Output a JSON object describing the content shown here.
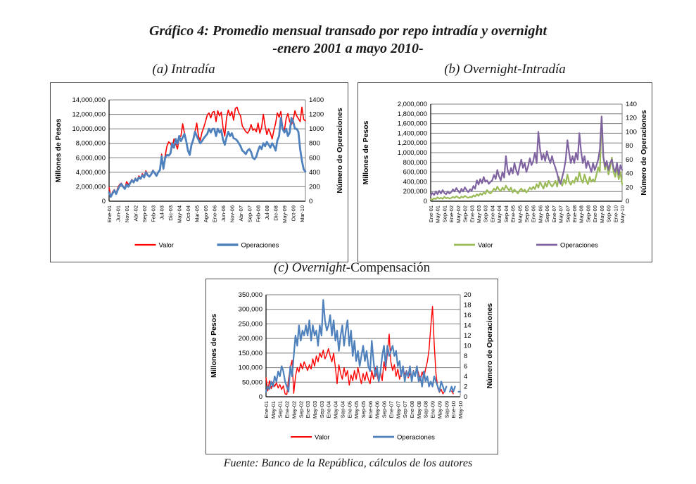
{
  "title": {
    "line1": "Gráfico 4: Promedio mensual transado por repo intradía y overnight",
    "line2": "-enero 2001 a mayo 2010-"
  },
  "footer": "Fuente: Banco de la República, cálculos de los autores",
  "chart_data": [
    {
      "id": "a",
      "type": "line",
      "caption_italic": "(a) Intradía",
      "caption_roman": "",
      "ylabel_left": "Millones de Pesos",
      "ylabel_right": "Número de Operaciones",
      "left_axis": {
        "min": 0,
        "max": 14,
        "labels": [
          "0",
          "2,000,000",
          "4,000,000",
          "6,000,000",
          "8,000,000",
          "10,000,000",
          "12,000,000",
          "14,000,000"
        ]
      },
      "right_axis": {
        "min": 0,
        "max": 1400,
        "labels": [
          "0",
          "200",
          "400",
          "600",
          "800",
          "1000",
          "1200",
          "1400"
        ]
      },
      "x_range_note": "monthly Ene-01 to May-10 (113 points)",
      "x_tick_every": 5,
      "x_tick_labels": [
        "Ene-01",
        "Jun-01",
        "Nov-01",
        "Abr-02",
        "Sep-02",
        "Feb-03",
        "Jul-03",
        "Dic-03",
        "May-04",
        "Oct-04",
        "Mar-05",
        "Ago-05",
        "Ene-06",
        "Jun-06",
        "Nov-06",
        "Abr-07",
        "Sep-07",
        "Feb-08",
        "Jul-08",
        "Dic-08",
        "May-09",
        "Oct-09",
        "Mar-10"
      ],
      "series": [
        {
          "name": "Valor",
          "color": "#FF0000",
          "axis": "left",
          "width": 1.6,
          "values": [
            1.9,
            0.6,
            1.3,
            1.6,
            1.1,
            1.9,
            2.3,
            2.5,
            2.1,
            1.8,
            2.7,
            2.3,
            2.6,
            3.0,
            2.7,
            3.2,
            2.9,
            3.5,
            3.2,
            3.8,
            3.4,
            4.2,
            3.7,
            3.4,
            3.8,
            4.3,
            3.9,
            3.5,
            4.0,
            4.4,
            6.5,
            4.4,
            6.3,
            7.6,
            8.2,
            8.0,
            7.4,
            8.6,
            7.9,
            7.2,
            8.8,
            9.0,
            10.7,
            9.4,
            8.3,
            7.0,
            6.4,
            7.8,
            8.5,
            9.6,
            10.8,
            9.0,
            8.4,
            9.5,
            10.2,
            11.0,
            11.9,
            12.2,
            11.5,
            12.3,
            12.4,
            11.0,
            12.5,
            11.8,
            12.3,
            10.2,
            9.0,
            11.5,
            12.6,
            11.8,
            12.4,
            11.2,
            12.8,
            13.0,
            12.2,
            11.8,
            10.4,
            10.0,
            9.6,
            9.4,
            9.8,
            10.6,
            9.8,
            10.0,
            9.6,
            10.8,
            9.4,
            10.2,
            12.0,
            10.4,
            9.2,
            10.0,
            9.4,
            8.6,
            9.8,
            10.8,
            12.2,
            11.6,
            12.4,
            10.2,
            9.8,
            11.4,
            12.1,
            11.0,
            10.6,
            11.2,
            12.5,
            11.8,
            11.4,
            11.0,
            13.0,
            11.3,
            11.1
          ]
        },
        {
          "name": "Operaciones",
          "color": "#4F81BD",
          "axis": "right",
          "width": 2.8,
          "values": [
            120,
            60,
            110,
            150,
            100,
            160,
            210,
            240,
            200,
            170,
            230,
            200,
            250,
            290,
            260,
            310,
            280,
            330,
            310,
            360,
            330,
            400,
            360,
            340,
            370,
            420,
            390,
            350,
            400,
            430,
            620,
            450,
            600,
            640,
            630,
            660,
            800,
            740,
            860,
            790,
            900,
            830,
            880,
            930,
            830,
            700,
            640,
            780,
            850,
            960,
            900,
            850,
            800,
            830,
            870,
            900,
            930,
            1000,
            950,
            1000,
            1000,
            900,
            1000,
            950,
            980,
            850,
            780,
            880,
            960,
            900,
            940,
            870,
            860,
            840,
            800,
            760,
            700,
            680,
            650,
            700,
            720,
            680,
            600,
            580,
            620,
            700,
            760,
            720,
            800,
            760,
            820,
            780,
            740,
            800,
            760,
            700,
            840,
            900,
            1150,
            1000,
            950,
            1000,
            900,
            950,
            1150,
            1100,
            1000,
            1000,
            960,
            720,
            560,
            440,
            410
          ]
        }
      ]
    },
    {
      "id": "b",
      "type": "line",
      "caption_italic": "(b) Overnight-Intradía",
      "caption_roman": "",
      "ylabel_left": "Millones de Pesos",
      "ylabel_right": "Número de Operaciones",
      "left_axis": {
        "min": 0,
        "max": 2000,
        "labels": [
          "0",
          "200,000",
          "400,000",
          "600,000",
          "800,000",
          "1,000,000",
          "1,200,000",
          "1,400,000",
          "1,600,000",
          "1,800,000",
          "2,000,000"
        ]
      },
      "right_axis": {
        "min": 0,
        "max": 140,
        "labels": [
          "0",
          "20",
          "40",
          "60",
          "80",
          "100",
          "120",
          "140"
        ]
      },
      "x_range_note": "monthly Ene-01 to May-10 (113 points)",
      "x_tick_every": 4,
      "x_tick_labels": [
        "Ene-01",
        "May-01",
        "Sep-01",
        "Ene-02",
        "May-02",
        "Sep-02",
        "Ene-03",
        "May-03",
        "Sep-03",
        "Ene-04",
        "May-04",
        "Sep-04",
        "Ene-05",
        "May-05",
        "Sep-05",
        "Ene-06",
        "May-06",
        "Sep-06",
        "Ene-07",
        "May-07",
        "Sep-07",
        "Ene-08",
        "May-08",
        "Sep-08",
        "Ene-09",
        "May-09",
        "Sep-09",
        "Ene-10",
        "May-10"
      ],
      "series": [
        {
          "name": "Valor",
          "color": "#9BBB59",
          "axis": "left",
          "width": 2.2,
          "values": [
            40,
            30,
            60,
            45,
            80,
            55,
            70,
            50,
            90,
            60,
            75,
            55,
            65,
            90,
            70,
            100,
            80,
            60,
            95,
            75,
            110,
            85,
            70,
            90,
            80,
            120,
            95,
            140,
            110,
            160,
            130,
            180,
            150,
            230,
            180,
            160,
            200,
            260,
            220,
            300,
            240,
            210,
            280,
            230,
            320,
            260,
            220,
            280,
            180,
            240,
            200,
            160,
            220,
            260,
            200,
            240,
            180,
            220,
            280,
            240,
            300,
            250,
            350,
            280,
            400,
            320,
            260,
            380,
            300,
            420,
            350,
            300,
            350,
            420,
            300,
            500,
            380,
            320,
            450,
            360,
            550,
            400,
            340,
            420,
            380,
            500,
            420,
            600,
            450,
            380,
            550,
            430,
            350,
            500,
            400,
            450,
            400,
            550,
            700,
            600,
            1750,
            900,
            650,
            800,
            550,
            700,
            900,
            600,
            500,
            700,
            450,
            600,
            350
          ]
        },
        {
          "name": "Operaciones",
          "color": "#8064A2",
          "axis": "right",
          "width": 2.2,
          "values": [
            8,
            12,
            9,
            14,
            10,
            15,
            11,
            16,
            12,
            10,
            14,
            11,
            13,
            17,
            14,
            19,
            15,
            12,
            18,
            14,
            20,
            16,
            13,
            17,
            15,
            22,
            18,
            30,
            24,
            32,
            26,
            35,
            28,
            30,
            25,
            28,
            30,
            38,
            32,
            45,
            36,
            30,
            42,
            34,
            65,
            45,
            38,
            48,
            40,
            55,
            45,
            38,
            50,
            60,
            48,
            55,
            42,
            50,
            62,
            52,
            58,
            70,
            55,
            100,
            75,
            60,
            68,
            58,
            72,
            62,
            55,
            65,
            55,
            48,
            40,
            30,
            25,
            35,
            45,
            60,
            88,
            70,
            55,
            65,
            55,
            70,
            60,
            98,
            72,
            55,
            65,
            48,
            58,
            50,
            42,
            55,
            45,
            52,
            60,
            75,
            122,
            65,
            50,
            58,
            45,
            55,
            60,
            48,
            42,
            55,
            38,
            52,
            45
          ]
        }
      ]
    },
    {
      "id": "c",
      "type": "line",
      "caption_italic": "(c) Overnight-",
      "caption_roman": "Compensación",
      "ylabel_left": "Millones de Pesos",
      "ylabel_right": "Número de Operaciones",
      "left_axis": {
        "min": 0,
        "max": 350,
        "labels": [
          "0",
          "50,000",
          "100,000",
          "150,000",
          "200,000",
          "250,000",
          "300,000",
          "350,000"
        ]
      },
      "right_axis": {
        "min": 0,
        "max": 20,
        "labels": [
          "0",
          "2",
          "4",
          "6",
          "8",
          "10",
          "12",
          "14",
          "16",
          "18",
          "20"
        ]
      },
      "x_range_note": "monthly Ene-01 to May-10 (113 points, gaps near end)",
      "x_tick_every": 4,
      "x_tick_labels": [
        "Ene-01",
        "May-01",
        "Sep-01",
        "Ene-02",
        "May-02",
        "Sep-02",
        "Ene-03",
        "May-03",
        "Sep-03",
        "Ene-04",
        "May-04",
        "Sep-04",
        "Ene-05",
        "May-05",
        "Sep-05",
        "Ene-06",
        "May-06",
        "Sep-06",
        "Ene-07",
        "May-07",
        "Sep-07",
        "Ene-08",
        "May-08",
        "Sep-08",
        "Ene-09",
        "May-09",
        "Sep-09",
        "Ene-10",
        "May-10"
      ],
      "series": [
        {
          "name": "Valor",
          "color": "#FF0000",
          "axis": "left",
          "width": 1.4,
          "values": [
            65,
            20,
            55,
            28,
            50,
            35,
            48,
            30,
            42,
            25,
            38,
            10,
            8,
            60,
            100,
            125,
            12,
            70,
            100,
            85,
            115,
            95,
            120,
            105,
            90,
            110,
            95,
            130,
            105,
            140,
            120,
            150,
            135,
            160,
            130,
            145,
            165,
            140,
            120,
            150,
            100,
            45,
            110,
            80,
            60,
            100,
            70,
            90,
            40,
            75,
            55,
            90,
            60,
            100,
            70,
            45,
            80,
            55,
            85,
            60,
            45,
            90,
            60,
            100,
            75,
            50,
            85,
            55,
            120,
            90,
            150,
            215,
            120,
            90,
            110,
            70,
            95,
            60,
            85,
            100,
            75,
            90,
            65,
            80,
            60,
            90,
            70,
            100,
            80,
            55,
            85,
            65,
            95,
            120,
            160,
            240,
            310,
            180,
            80,
            30,
            15,
            25,
            10,
            20,
            null,
            15,
            null,
            20,
            10,
            null,
            25,
            null,
            15
          ]
        },
        {
          "name": "Operaciones",
          "color": "#4F81BD",
          "axis": "right",
          "width": 2.2,
          "values": [
            1,
            2,
            1.5,
            3,
            2,
            4,
            3,
            5,
            4,
            6,
            5,
            3,
            2,
            1,
            6,
            4,
            8,
            12,
            10,
            14,
            11,
            13,
            12,
            14,
            12,
            15,
            11,
            14,
            12,
            13,
            10,
            14,
            12,
            19,
            15,
            13,
            14,
            16,
            12,
            15,
            11,
            13,
            9,
            12,
            14,
            10,
            13,
            15,
            10,
            13,
            8,
            11,
            7,
            9,
            6,
            8,
            10,
            7,
            9,
            6,
            5,
            11,
            7,
            4,
            6,
            3,
            5,
            8,
            10,
            6,
            10,
            8,
            9,
            10,
            8,
            9,
            6,
            7,
            4,
            6,
            3,
            5,
            4,
            6,
            3,
            5,
            4,
            6,
            3,
            4,
            2,
            5,
            3,
            4,
            2,
            3,
            2,
            4,
            3,
            2,
            1,
            3,
            2,
            1,
            2,
            null,
            1,
            2,
            1,
            2,
            null,
            1,
            1
          ]
        }
      ]
    }
  ]
}
